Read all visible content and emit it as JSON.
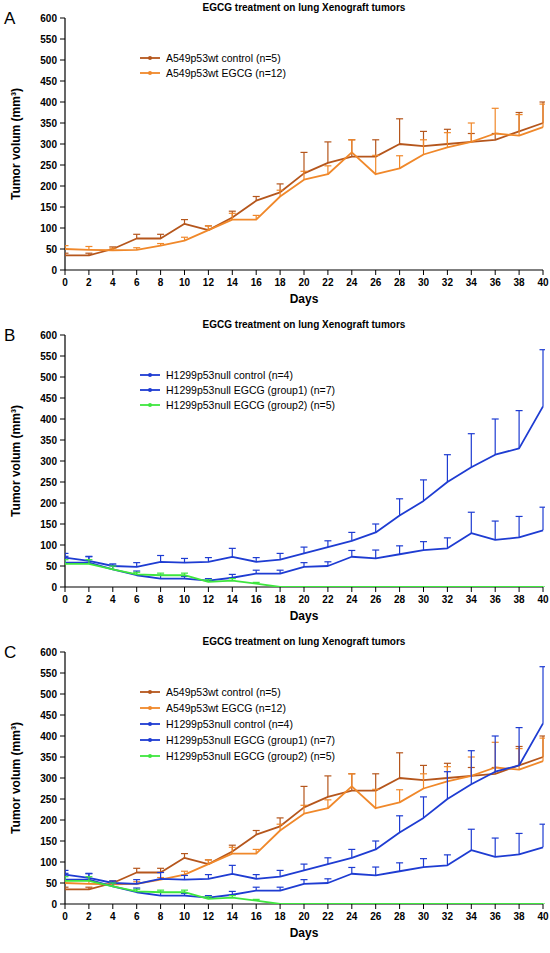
{
  "chart_data": [
    {
      "type": "line",
      "annotation": "A",
      "title": "EGCG treatment on lung Xenograft tumors",
      "x_label": "Days",
      "y_label": "Tumor volum (mm³)",
      "x": [
        0,
        2,
        4,
        6,
        8,
        10,
        12,
        14,
        16,
        18,
        20,
        22,
        24,
        26,
        28,
        30,
        32,
        34,
        36,
        38,
        40
      ],
      "xlim": [
        0,
        40
      ],
      "xticks": [
        0,
        2,
        4,
        6,
        8,
        10,
        12,
        14,
        16,
        18,
        20,
        22,
        24,
        26,
        28,
        30,
        32,
        34,
        36,
        38,
        40
      ],
      "ylim": [
        0,
        600
      ],
      "yticks": [
        0,
        50,
        100,
        150,
        200,
        250,
        300,
        350,
        400,
        450,
        500,
        550,
        600
      ],
      "legend": "upper left",
      "series": [
        {
          "name": "A549p53wt control (n=5)",
          "color": "#b5561c",
          "values": [
            35,
            35,
            50,
            75,
            75,
            110,
            95,
            125,
            165,
            185,
            230,
            255,
            270,
            270,
            300,
            295,
            300,
            305,
            310,
            330,
            350
          ],
          "errors": [
            5,
            5,
            5,
            10,
            10,
            10,
            10,
            15,
            10,
            20,
            50,
            50,
            40,
            40,
            60,
            35,
            35,
            20,
            15,
            45,
            50
          ]
        },
        {
          "name": "A549p53wt EGCG (n=12)",
          "color": "#f0882a",
          "values": [
            50,
            48,
            47,
            48,
            58,
            70,
            95,
            120,
            120,
            175,
            215,
            228,
            280,
            228,
            242,
            275,
            292,
            305,
            325,
            320,
            340
          ],
          "errors": [
            8,
            8,
            5,
            5,
            5,
            8,
            10,
            15,
            10,
            15,
            20,
            20,
            30,
            45,
            30,
            35,
            35,
            45,
            60,
            50,
            55
          ]
        }
      ]
    },
    {
      "type": "line",
      "annotation": "B",
      "title": "EGCG treatment on lung Xenograft tumors",
      "x_label": "Days",
      "y_label": "Tumor volum (mm³)",
      "x": [
        0,
        2,
        4,
        6,
        8,
        10,
        12,
        14,
        16,
        18,
        20,
        22,
        24,
        26,
        28,
        30,
        32,
        34,
        36,
        38,
        40
      ],
      "xlim": [
        0,
        40
      ],
      "xticks": [
        0,
        2,
        4,
        6,
        8,
        10,
        12,
        14,
        16,
        18,
        20,
        22,
        24,
        26,
        28,
        30,
        32,
        34,
        36,
        38,
        40
      ],
      "ylim": [
        0,
        600
      ],
      "yticks": [
        0,
        50,
        100,
        150,
        200,
        250,
        300,
        350,
        400,
        450,
        500,
        550,
        600
      ],
      "legend": "upper left",
      "series": [
        {
          "name": "H1299p53null control (n=4)",
          "color": "#1e3cd2",
          "values": [
            70,
            62,
            50,
            48,
            60,
            58,
            60,
            72,
            60,
            65,
            80,
            95,
            110,
            130,
            170,
            205,
            250,
            285,
            315,
            330,
            430
          ],
          "errors": [
            10,
            10,
            5,
            10,
            15,
            10,
            10,
            20,
            10,
            15,
            15,
            15,
            20,
            20,
            40,
            50,
            65,
            80,
            85,
            90,
            135
          ]
        },
        {
          "name": "H1299p53null EGCG (group1) (n=7)",
          "color": "#1e3cd2",
          "values": [
            58,
            58,
            42,
            28,
            20,
            20,
            15,
            22,
            32,
            32,
            48,
            50,
            72,
            68,
            78,
            88,
            92,
            128,
            112,
            118,
            135
          ],
          "errors": [
            15,
            15,
            10,
            10,
            8,
            5,
            5,
            8,
            8,
            8,
            10,
            10,
            15,
            20,
            20,
            20,
            25,
            50,
            45,
            50,
            55
          ]
        },
        {
          "name": "H1299p53null EGCG (group2) (n=5)",
          "color": "#3ee63e",
          "values": [
            55,
            55,
            42,
            30,
            28,
            28,
            12,
            15,
            8,
            0,
            0,
            0,
            0,
            0,
            0,
            0,
            0,
            0,
            0,
            0,
            0
          ],
          "errors": [
            10,
            10,
            8,
            5,
            5,
            5,
            5,
            5,
            3,
            0,
            0,
            0,
            0,
            0,
            0,
            0,
            0,
            0,
            0,
            0,
            0
          ]
        }
      ]
    },
    {
      "type": "line",
      "annotation": "C",
      "title": "EGCG treatment on lung Xenograft tumors",
      "x_label": "Days",
      "y_label": "Tumor volum (mm³)",
      "x": [
        0,
        2,
        4,
        6,
        8,
        10,
        12,
        14,
        16,
        18,
        20,
        22,
        24,
        26,
        28,
        30,
        32,
        34,
        36,
        38,
        40
      ],
      "xlim": [
        0,
        40
      ],
      "xticks": [
        0,
        2,
        4,
        6,
        8,
        10,
        12,
        14,
        16,
        18,
        20,
        22,
        24,
        26,
        28,
        30,
        32,
        34,
        36,
        38,
        40
      ],
      "ylim": [
        0,
        600
      ],
      "yticks": [
        0,
        50,
        100,
        150,
        200,
        250,
        300,
        350,
        400,
        450,
        500,
        550,
        600
      ],
      "legend": "upper left",
      "series": [
        {
          "name": "A549p53wt control (n=5)",
          "color": "#b5561c",
          "values": [
            35,
            35,
            50,
            75,
            75,
            110,
            95,
            125,
            165,
            185,
            230,
            255,
            270,
            270,
            300,
            295,
            300,
            305,
            310,
            330,
            350
          ],
          "errors": [
            5,
            5,
            5,
            10,
            10,
            10,
            10,
            15,
            10,
            20,
            50,
            50,
            40,
            40,
            60,
            35,
            35,
            20,
            15,
            45,
            50
          ]
        },
        {
          "name": "A549p53wt EGCG (n=12)",
          "color": "#f0882a",
          "values": [
            50,
            48,
            47,
            48,
            58,
            70,
            95,
            120,
            120,
            175,
            215,
            228,
            280,
            228,
            242,
            275,
            292,
            305,
            325,
            320,
            340
          ],
          "errors": [
            8,
            8,
            5,
            5,
            5,
            8,
            10,
            15,
            10,
            15,
            20,
            20,
            30,
            45,
            30,
            35,
            35,
            45,
            60,
            50,
            55
          ]
        },
        {
          "name": "H1299p53null control (n=4)",
          "color": "#1e3cd2",
          "values": [
            70,
            62,
            50,
            48,
            60,
            58,
            60,
            72,
            60,
            65,
            80,
            95,
            110,
            130,
            170,
            205,
            250,
            285,
            315,
            330,
            430
          ],
          "errors": [
            10,
            10,
            5,
            10,
            15,
            10,
            10,
            20,
            10,
            15,
            15,
            15,
            20,
            20,
            40,
            50,
            65,
            80,
            85,
            90,
            135
          ]
        },
        {
          "name": "H1299p53null EGCG (group1) (n=7)",
          "color": "#1e3cd2",
          "values": [
            58,
            58,
            42,
            28,
            20,
            20,
            15,
            22,
            32,
            32,
            48,
            50,
            72,
            68,
            78,
            88,
            92,
            128,
            112,
            118,
            135
          ],
          "errors": [
            15,
            15,
            10,
            10,
            8,
            5,
            5,
            8,
            8,
            8,
            10,
            10,
            15,
            20,
            20,
            20,
            25,
            50,
            45,
            50,
            55
          ]
        },
        {
          "name": "H1299p53null EGCG (group2) (n=5)",
          "color": "#3ee63e",
          "values": [
            55,
            55,
            42,
            30,
            28,
            28,
            12,
            15,
            8,
            0,
            0,
            0,
            0,
            0,
            0,
            0,
            0,
            0,
            0,
            0,
            0
          ],
          "errors": [
            10,
            10,
            8,
            5,
            5,
            5,
            5,
            5,
            3,
            0,
            0,
            0,
            0,
            0,
            0,
            0,
            0,
            0,
            0,
            0,
            0
          ]
        }
      ]
    }
  ]
}
